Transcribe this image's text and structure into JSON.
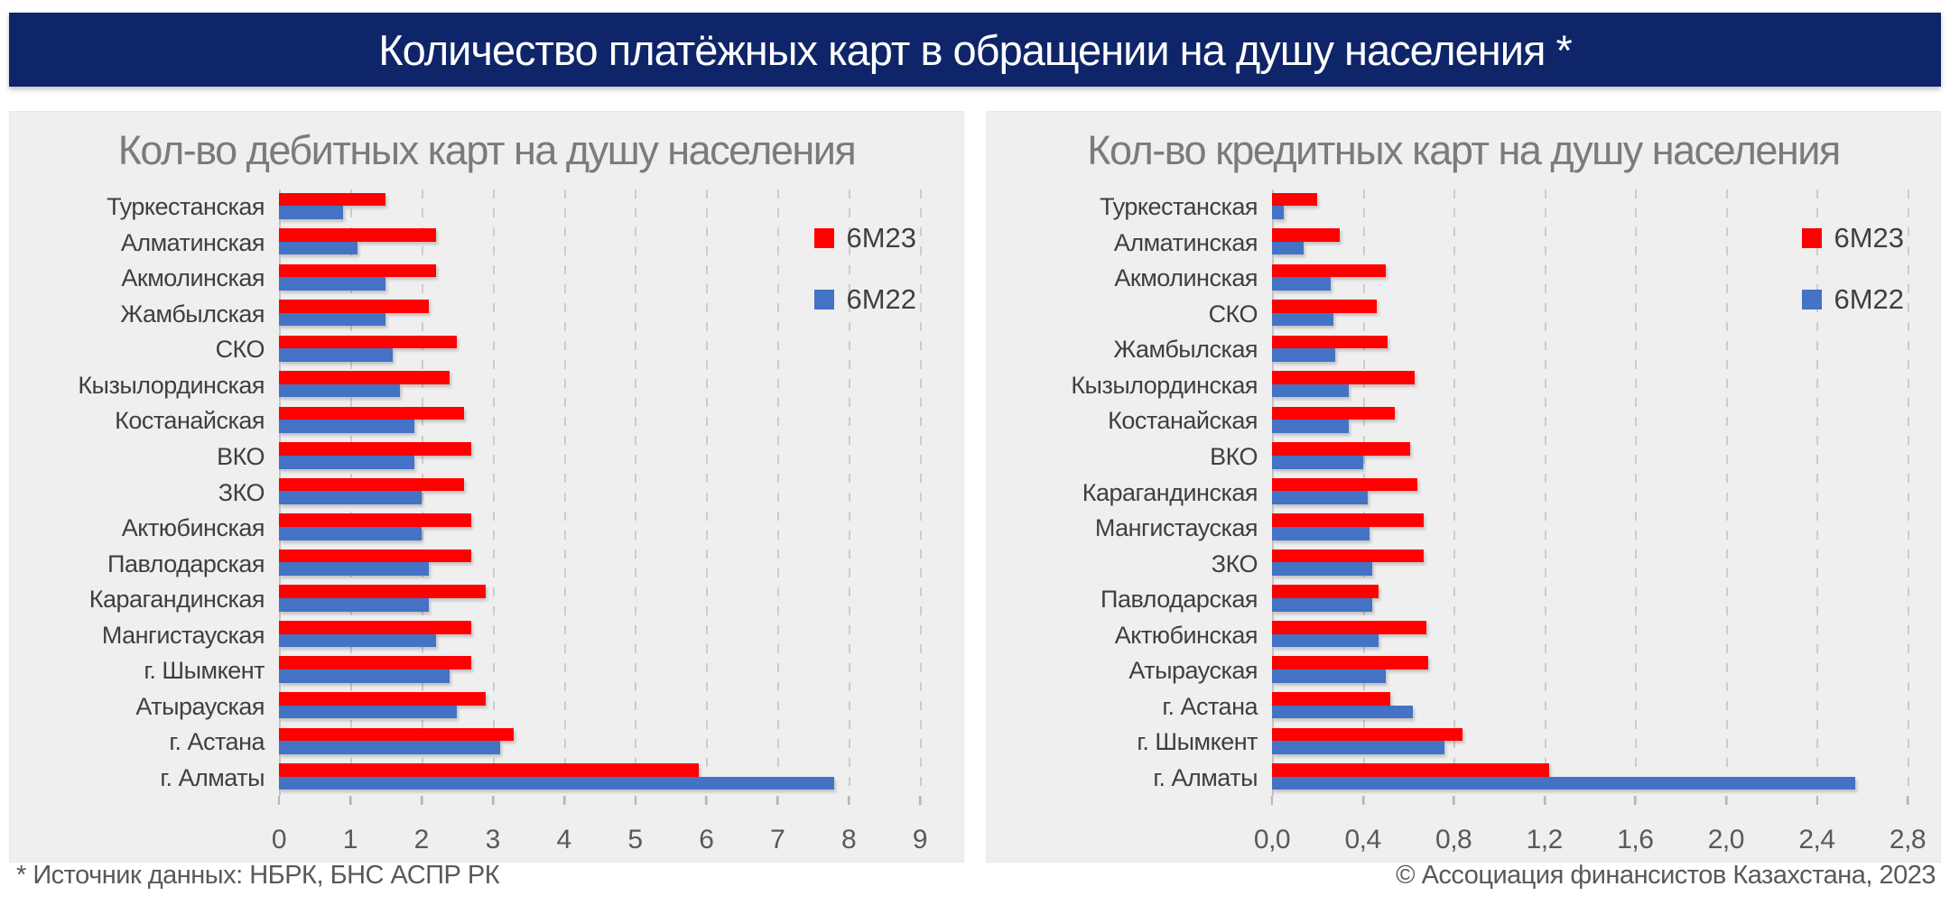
{
  "page": {
    "title": "Количество платёжных карт в обращении на душу населения *"
  },
  "footer": {
    "source_note": "* Источник данных: НБРК, БНС АСПР РК",
    "copyright": "© Ассоциация финансистов Казахстана, 2023"
  },
  "colors": {
    "header_bg": "#0e2569",
    "panel_bg": "#efefef",
    "series_6m23": "#fe0000",
    "series_6m22": "#4472c4",
    "chart_title_text": "#7b7b7b",
    "category_text": "#3f3f3f",
    "tick_text": "#595959",
    "gridline": "#cccccc"
  },
  "legend": [
    {
      "name": "6М23",
      "color": "#fe0000"
    },
    {
      "name": "6М22",
      "color": "#4472c4"
    }
  ],
  "chart_data": [
    {
      "type": "bar",
      "orientation": "horizontal",
      "title": "Кол-во дебитных карт на душу населения",
      "categories": [
        "Туркестанская",
        "Алматинская",
        "Акмолинская",
        "Жамбылская",
        "СКО",
        "Кызылординская",
        "Костанайская",
        "ВКО",
        "ЗКО",
        "Актюбинская",
        "Павлодарская",
        "Карагандинская",
        "Мангистауская",
        "г. Шымкент",
        "Атырауская",
        "г. Астана",
        "г. Алматы"
      ],
      "series": [
        {
          "name": "6М23",
          "color": "#fe0000",
          "values": [
            1.5,
            2.2,
            2.2,
            2.1,
            2.5,
            2.4,
            2.6,
            2.7,
            2.6,
            2.7,
            2.7,
            2.9,
            2.7,
            2.7,
            2.9,
            3.3,
            5.9
          ]
        },
        {
          "name": "6М22",
          "color": "#4472c4",
          "values": [
            0.9,
            1.1,
            1.5,
            1.5,
            1.6,
            1.7,
            1.9,
            1.9,
            2.0,
            2.0,
            2.1,
            2.1,
            2.2,
            2.4,
            2.5,
            3.1,
            7.8
          ]
        }
      ],
      "xlim": [
        0,
        9
      ],
      "xticks": [
        0,
        1,
        2,
        3,
        4,
        5,
        6,
        7,
        8,
        9
      ],
      "xtick_labels": [
        "0",
        "1",
        "2",
        "3",
        "4",
        "5",
        "6",
        "7",
        "8",
        "9"
      ],
      "grid": "dashed-vertical",
      "legend_position": "right-top"
    },
    {
      "type": "bar",
      "orientation": "horizontal",
      "title": "Кол-во кредитных карт на душу населения",
      "categories": [
        "Туркестанская",
        "Алматинская",
        "Акмолинская",
        "СКО",
        "Жамбылская",
        "Кызылординская",
        "Костанайская",
        "ВКО",
        "Карагандинская",
        "Мангистауская",
        "ЗКО",
        "Павлодарская",
        "Актюбинская",
        "Атырауская",
        "г. Астана",
        "г. Шымкент",
        "г. Алматы"
      ],
      "series": [
        {
          "name": "6М23",
          "color": "#fe0000",
          "values": [
            0.2,
            0.3,
            0.5,
            0.46,
            0.51,
            0.63,
            0.54,
            0.61,
            0.64,
            0.67,
            0.67,
            0.47,
            0.68,
            0.69,
            0.52,
            0.84,
            1.22
          ]
        },
        {
          "name": "6М22",
          "color": "#4472c4",
          "values": [
            0.05,
            0.14,
            0.26,
            0.27,
            0.28,
            0.34,
            0.34,
            0.4,
            0.42,
            0.43,
            0.44,
            0.44,
            0.47,
            0.5,
            0.62,
            0.76,
            2.57
          ]
        }
      ],
      "xlim": [
        0,
        2.8
      ],
      "xticks": [
        0,
        0.4,
        0.8,
        1.2,
        1.6,
        2.0,
        2.4,
        2.8
      ],
      "xtick_labels": [
        "0,0",
        "0,4",
        "0,8",
        "1,2",
        "1,6",
        "2,0",
        "2,4",
        "2,8"
      ],
      "grid": "dashed-vertical",
      "legend_position": "right-top"
    }
  ]
}
